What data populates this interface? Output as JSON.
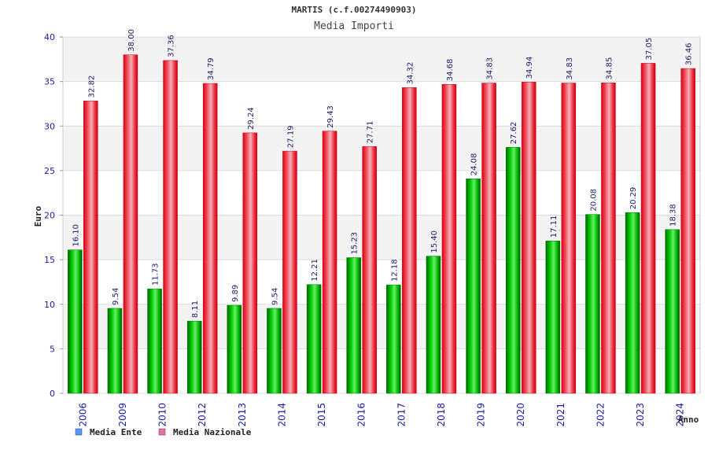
{
  "chart_data": {
    "type": "bar",
    "title": "MARTIS (c.f.00274490903)",
    "subtitle": "Media Importi",
    "xlabel": "Anno",
    "ylabel": "Euro",
    "ylim": [
      0,
      40
    ],
    "yticks": [
      0,
      5,
      10,
      15,
      20,
      25,
      30,
      35,
      40
    ],
    "categories": [
      "2006",
      "2009",
      "2010",
      "2012",
      "2013",
      "2014",
      "2015",
      "2016",
      "2017",
      "2018",
      "2019",
      "2020",
      "2021",
      "2022",
      "2023",
      "2024"
    ],
    "series": [
      {
        "name": "Media Ente",
        "color": "#00aa00",
        "values": [
          16.1,
          9.54,
          11.73,
          8.11,
          9.89,
          9.54,
          12.21,
          15.23,
          12.18,
          15.4,
          24.08,
          27.62,
          17.11,
          20.08,
          20.29,
          18.38
        ],
        "labels": [
          "16.10",
          "9.54",
          "11.73",
          "8.11",
          "9.89",
          "9.54",
          "12.21",
          "15.23",
          "12.18",
          "15.40",
          "24.08",
          "27.62",
          "17.11",
          "20.08",
          "20.29",
          "18.38"
        ]
      },
      {
        "name": "Media Nazionale",
        "color": "#ee1122",
        "values": [
          32.82,
          38.0,
          37.36,
          34.79,
          29.24,
          27.19,
          29.43,
          27.71,
          34.32,
          34.68,
          34.83,
          34.94,
          34.83,
          34.85,
          37.05,
          36.46
        ],
        "labels": [
          "32.82",
          "38.00",
          "37.36",
          "34.79",
          "29.24",
          "27.19",
          "29.43",
          "27.71",
          "34.32",
          "34.68",
          "34.83",
          "34.94",
          "34.83",
          "34.85",
          "37.05",
          "36.46"
        ]
      }
    ],
    "grid": true,
    "legend_position": "bottom-left",
    "legend": [
      {
        "label": "Media Ente",
        "color": "#5599ee"
      },
      {
        "label": "Media Nazionale",
        "color": "#dd77aa"
      }
    ]
  }
}
